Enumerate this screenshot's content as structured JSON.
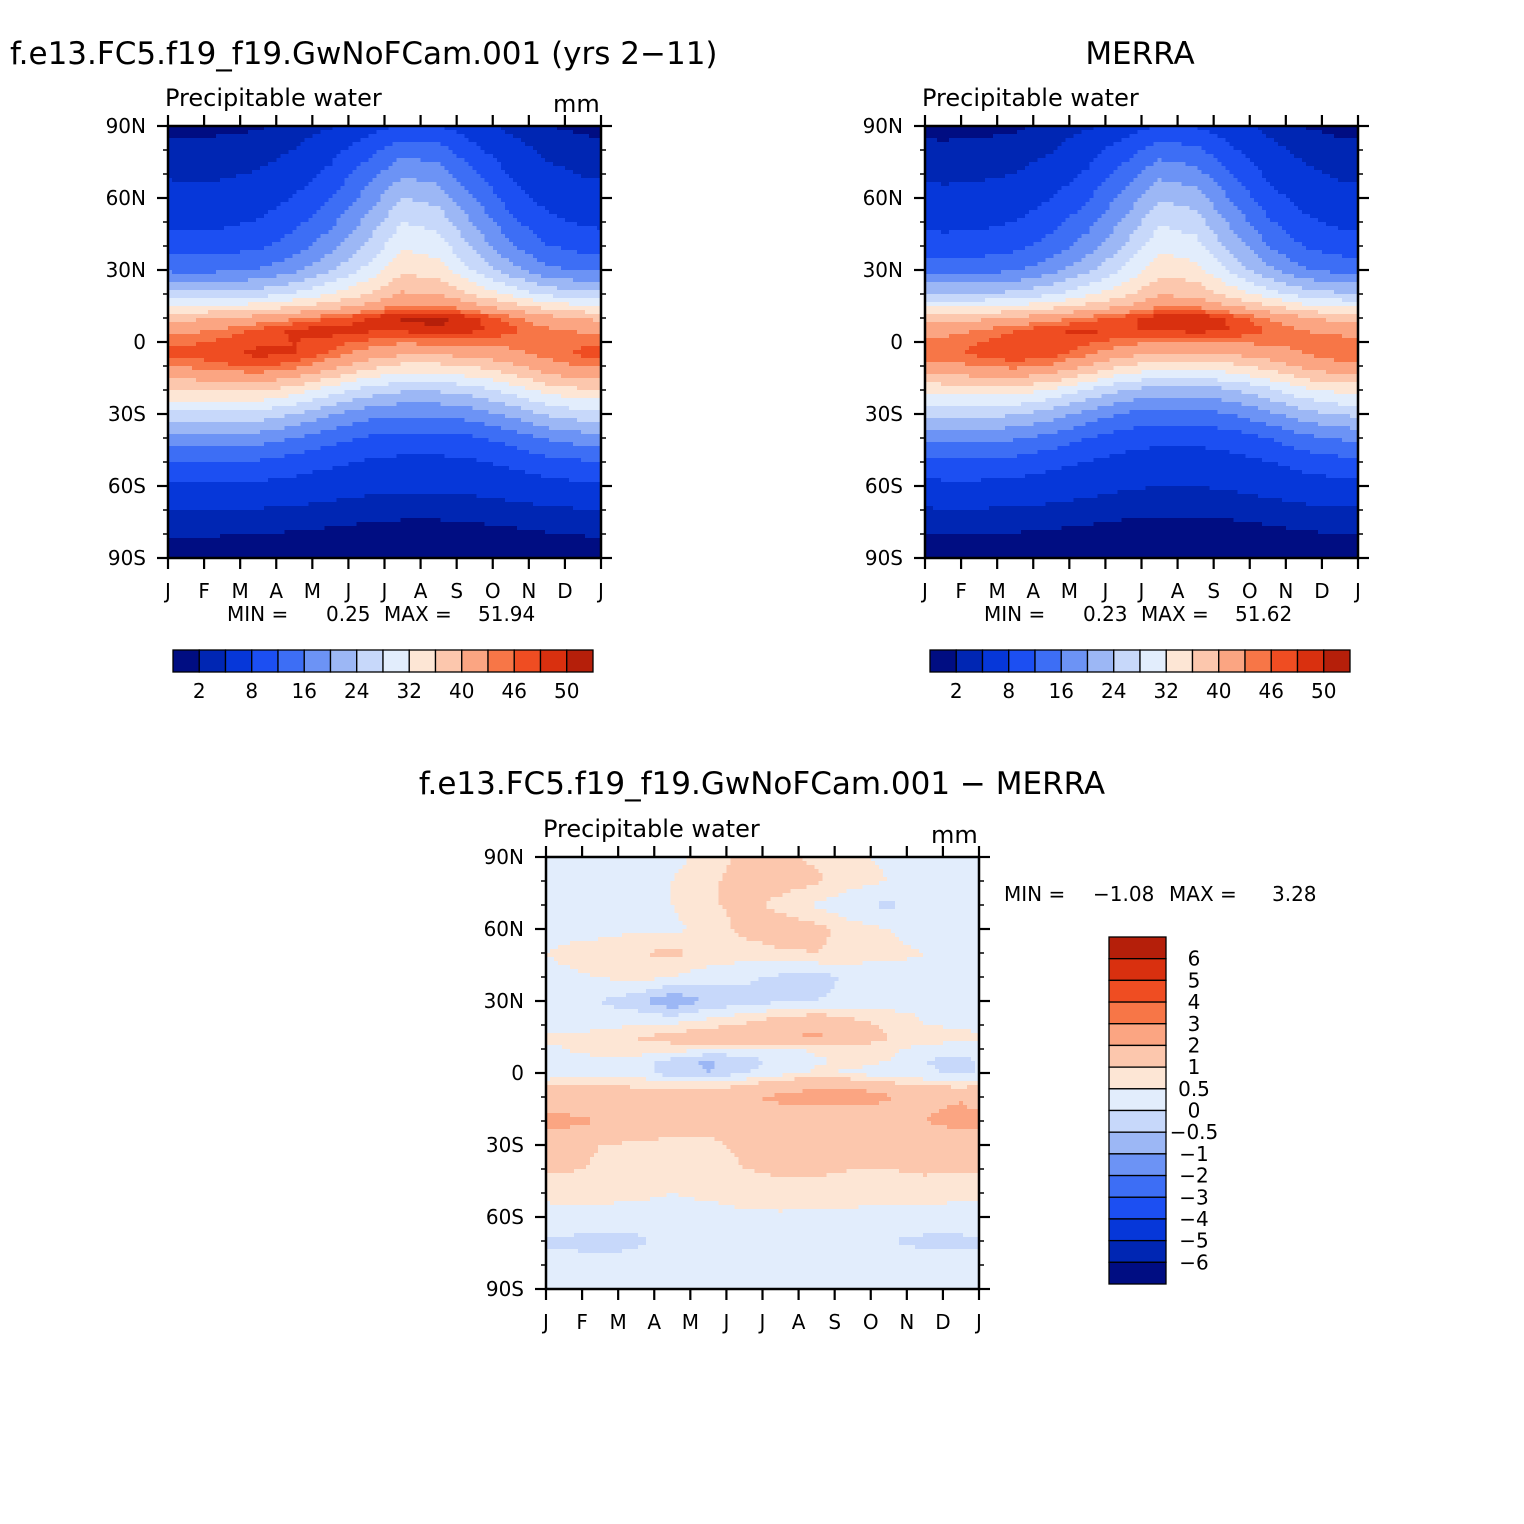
{
  "months": [
    "J",
    "F",
    "M",
    "A",
    "M",
    "J",
    "J",
    "A",
    "S",
    "O",
    "N",
    "D",
    "J"
  ],
  "lat_ticks": [
    "90N",
    "60N",
    "30N",
    "0",
    "30S",
    "60S",
    "90S"
  ],
  "abs_palette": [
    "#000d82",
    "#0026b3",
    "#0637d9",
    "#1c4ff2",
    "#3d6ef5",
    "#6c93f5",
    "#9cb7f5",
    "#c7d8fa",
    "#e2edfc",
    "#fde6d5",
    "#fcc7ad",
    "#fba582",
    "#f77647",
    "#ef4d22",
    "#d9300f",
    "#b51f0a",
    "#850b06"
  ],
  "diff_palette": [
    "#000d82",
    "#0026b3",
    "#0637d9",
    "#1c4ff2",
    "#3d6ef5",
    "#6c93f5",
    "#9cb7f5",
    "#c7d8fa",
    "#e2edfc",
    "#fde6d5",
    "#fcc7ad",
    "#fba582",
    "#f77647",
    "#ef4d22",
    "#d9300f",
    "#b51f0a",
    "#850b06"
  ],
  "chart_data": [
    {
      "type": "heatmap",
      "title": "f.e13.FC5.f19_f19.GwNoFCam.001 (yrs 2−11)",
      "subtitle": "Precipitable water",
      "units": "mm",
      "xlabel": "",
      "ylabel": "",
      "x_ticks": [
        "J",
        "F",
        "M",
        "A",
        "M",
        "J",
        "J",
        "A",
        "S",
        "O",
        "N",
        "D",
        "J"
      ],
      "y_ticks": [
        "90N",
        "60N",
        "30N",
        "0",
        "30S",
        "60S",
        "90S"
      ],
      "ylim": [
        -90,
        90
      ],
      "min_label": "MIN =",
      "min_value": "0.25",
      "max_label": "MAX =",
      "max_value": "51.94",
      "colorbar_labels": [
        "2",
        "8",
        "16",
        "24",
        "32",
        "40",
        "46",
        "50"
      ],
      "levels": [
        2,
        4,
        8,
        12,
        16,
        20,
        24,
        28,
        32,
        36,
        40,
        44,
        46,
        48,
        50
      ],
      "latitudes": [
        90,
        80,
        70,
        60,
        50,
        40,
        30,
        20,
        15,
        10,
        5,
        0,
        -5,
        -10,
        -15,
        -20,
        -30,
        -40,
        -50,
        -60,
        -70,
        -80,
        -90
      ],
      "months_index": [
        1,
        2,
        3,
        4,
        5,
        6,
        7,
        8,
        9,
        10,
        11,
        12
      ],
      "values": [
        [
          1.5,
          1.6,
          1.8,
          2.5,
          3.6,
          6.0,
          8.5,
          8.0,
          5.5,
          3.2,
          2.0,
          1.6
        ],
        [
          2.5,
          2.6,
          2.8,
          4.0,
          6.5,
          10.5,
          14.5,
          13.5,
          9.0,
          5.2,
          3.3,
          2.6
        ],
        [
          3.5,
          3.6,
          4.2,
          5.8,
          9.0,
          14.0,
          19.5,
          18.0,
          12.5,
          7.5,
          4.8,
          3.8
        ],
        [
          5.0,
          5.2,
          6.0,
          8.2,
          12.0,
          17.5,
          24.0,
          22.5,
          16.0,
          10.0,
          6.6,
          5.3
        ],
        [
          7.0,
          7.2,
          8.2,
          10.8,
          15.0,
          21.0,
          28.0,
          26.5,
          19.5,
          13.0,
          9.0,
          7.4
        ],
        [
          10.0,
          10.2,
          11.2,
          14.0,
          18.5,
          24.5,
          31.5,
          30.0,
          23.0,
          16.5,
          12.2,
          10.4
        ],
        [
          15.0,
          15.2,
          16.2,
          19.0,
          23.5,
          29.0,
          35.0,
          34.0,
          27.5,
          21.5,
          17.0,
          15.4
        ],
        [
          25.0,
          25.2,
          26.0,
          28.5,
          32.0,
          36.0,
          40.5,
          40.0,
          35.5,
          31.0,
          27.0,
          25.5
        ],
        [
          32.0,
          32.5,
          33.5,
          35.5,
          38.0,
          41.0,
          44.5,
          44.5,
          41.0,
          37.5,
          34.0,
          32.5
        ],
        [
          39.0,
          40.0,
          41.5,
          43.5,
          46.0,
          48.0,
          50.5,
          51.0,
          48.5,
          45.0,
          41.5,
          39.5
        ],
        [
          43.0,
          44.5,
          46.5,
          48.5,
          49.0,
          48.5,
          48.5,
          49.5,
          48.5,
          46.5,
          44.5,
          43.5
        ],
        [
          45.5,
          46.5,
          47.5,
          48.0,
          47.0,
          45.5,
          44.5,
          45.0,
          45.0,
          45.0,
          45.5,
          45.5
        ],
        [
          46.5,
          47.5,
          48.5,
          48.0,
          45.5,
          42.5,
          40.5,
          40.5,
          41.5,
          43.0,
          45.0,
          46.5
        ],
        [
          44.5,
          45.5,
          46.5,
          45.0,
          41.5,
          37.5,
          35.0,
          35.0,
          36.5,
          39.0,
          42.5,
          44.5
        ],
        [
          40.5,
          41.5,
          42.0,
          40.0,
          36.0,
          32.0,
          30.0,
          30.0,
          31.5,
          34.5,
          38.5,
          40.5
        ],
        [
          36.0,
          36.5,
          36.5,
          34.0,
          30.0,
          26.5,
          24.5,
          24.5,
          26.0,
          29.5,
          33.5,
          35.5
        ],
        [
          27.0,
          27.0,
          26.5,
          24.0,
          20.5,
          17.5,
          16.5,
          16.5,
          18.0,
          21.0,
          24.5,
          26.5
        ],
        [
          18.5,
          18.5,
          18.0,
          16.0,
          13.5,
          11.5,
          10.5,
          10.5,
          11.5,
          13.5,
          16.5,
          18.0
        ],
        [
          12.0,
          12.0,
          11.5,
          10.2,
          8.8,
          7.6,
          7.0,
          7.0,
          7.6,
          8.8,
          10.5,
          11.5
        ],
        [
          7.5,
          7.5,
          7.2,
          6.5,
          5.6,
          4.9,
          4.5,
          4.5,
          4.9,
          5.6,
          6.6,
          7.2
        ],
        [
          4.0,
          4.0,
          3.8,
          3.4,
          3.0,
          2.7,
          2.5,
          2.5,
          2.7,
          3.0,
          3.5,
          3.8
        ],
        [
          2.2,
          2.1,
          2.0,
          1.8,
          1.6,
          1.4,
          1.3,
          1.3,
          1.4,
          1.6,
          1.9,
          2.1
        ],
        [
          0.9,
          0.9,
          0.8,
          0.7,
          0.6,
          0.5,
          0.5,
          0.5,
          0.6,
          0.7,
          0.8,
          0.9
        ]
      ]
    },
    {
      "type": "heatmap",
      "title": "MERRA",
      "subtitle": "Precipitable water",
      "units": "",
      "xlabel": "",
      "ylabel": "",
      "x_ticks": [
        "J",
        "F",
        "M",
        "A",
        "M",
        "J",
        "J",
        "A",
        "S",
        "O",
        "N",
        "D",
        "J"
      ],
      "y_ticks": [
        "90N",
        "60N",
        "30N",
        "0",
        "30S",
        "60S",
        "90S"
      ],
      "ylim": [
        -90,
        90
      ],
      "min_label": "MIN =",
      "min_value": "0.23",
      "max_label": "MAX =",
      "max_value": "51.62",
      "colorbar_labels": [
        "2",
        "8",
        "16",
        "24",
        "32",
        "40",
        "46",
        "50"
      ],
      "levels": [
        2,
        4,
        8,
        12,
        16,
        20,
        24,
        28,
        32,
        36,
        40,
        44,
        46,
        48,
        50
      ],
      "latitudes": [
        90,
        80,
        70,
        60,
        50,
        40,
        30,
        20,
        15,
        10,
        5,
        0,
        -5,
        -10,
        -15,
        -20,
        -30,
        -40,
        -50,
        -60,
        -70,
        -80,
        -90
      ],
      "months_index": [
        1,
        2,
        3,
        4,
        5,
        6,
        7,
        8,
        9,
        10,
        11,
        12
      ],
      "values": [
        [
          1.4,
          1.5,
          1.7,
          2.4,
          3.5,
          5.8,
          8.2,
          7.8,
          5.3,
          3.1,
          1.9,
          1.5
        ],
        [
          2.4,
          2.5,
          2.7,
          3.8,
          6.2,
          10.0,
          14.0,
          13.0,
          8.6,
          5.0,
          3.2,
          2.5
        ],
        [
          3.4,
          3.5,
          4.0,
          5.5,
          8.6,
          13.5,
          19.0,
          17.5,
          12.0,
          7.2,
          4.6,
          3.6
        ],
        [
          4.8,
          5.0,
          5.8,
          7.9,
          11.6,
          17.0,
          23.5,
          22.0,
          15.5,
          9.6,
          6.4,
          5.1
        ],
        [
          6.8,
          7.0,
          8.0,
          10.5,
          14.5,
          20.5,
          27.5,
          26.0,
          19.0,
          12.6,
          8.8,
          7.2
        ],
        [
          9.6,
          9.8,
          10.8,
          13.6,
          18.0,
          24.0,
          31.0,
          29.5,
          22.5,
          16.0,
          11.8,
          10.0
        ],
        [
          14.4,
          14.6,
          15.6,
          18.4,
          23.0,
          28.5,
          34.5,
          33.5,
          27.0,
          21.0,
          16.4,
          14.8
        ],
        [
          24.0,
          24.2,
          25.0,
          27.5,
          31.0,
          35.0,
          39.5,
          39.0,
          34.5,
          30.0,
          26.0,
          24.5
        ],
        [
          31.0,
          31.5,
          32.5,
          34.5,
          37.0,
          40.0,
          43.5,
          43.5,
          40.0,
          36.5,
          33.0,
          31.5
        ],
        [
          38.0,
          39.0,
          40.5,
          42.5,
          45.0,
          47.0,
          49.5,
          50.0,
          47.5,
          44.0,
          40.5,
          38.5
        ],
        [
          42.5,
          44.0,
          46.0,
          48.0,
          48.5,
          48.0,
          48.0,
          49.0,
          48.0,
          46.0,
          44.0,
          43.0
        ],
        [
          45.0,
          46.0,
          47.0,
          47.5,
          46.5,
          45.0,
          44.0,
          44.5,
          44.5,
          44.5,
          45.0,
          45.0
        ],
        [
          45.5,
          46.5,
          47.5,
          47.0,
          44.5,
          41.5,
          39.5,
          39.5,
          40.5,
          42.0,
          44.0,
          45.5
        ],
        [
          43.0,
          44.0,
          45.0,
          43.5,
          40.0,
          36.0,
          33.5,
          33.5,
          35.0,
          37.5,
          41.0,
          43.0
        ],
        [
          38.5,
          39.5,
          40.0,
          38.0,
          34.0,
          30.0,
          28.0,
          28.0,
          29.5,
          32.5,
          36.5,
          38.5
        ],
        [
          33.5,
          34.0,
          34.0,
          31.5,
          27.5,
          24.0,
          22.0,
          22.0,
          23.5,
          27.0,
          31.0,
          33.0
        ],
        [
          25.0,
          25.0,
          24.5,
          22.0,
          18.5,
          15.5,
          14.5,
          14.5,
          16.0,
          19.0,
          22.5,
          24.5
        ],
        [
          17.0,
          17.0,
          16.5,
          14.5,
          12.0,
          10.0,
          9.0,
          9.0,
          10.0,
          12.0,
          15.0,
          16.5
        ],
        [
          11.0,
          11.0,
          10.5,
          9.2,
          7.8,
          6.6,
          6.0,
          6.0,
          6.6,
          7.8,
          9.5,
          10.5
        ],
        [
          7.0,
          7.0,
          6.7,
          6.0,
          5.1,
          4.4,
          4.0,
          4.0,
          4.4,
          5.1,
          6.1,
          6.7
        ],
        [
          3.8,
          3.8,
          3.6,
          3.2,
          2.8,
          2.5,
          2.3,
          2.3,
          2.5,
          2.8,
          3.3,
          3.6
        ],
        [
          2.1,
          2.0,
          1.9,
          1.7,
          1.5,
          1.3,
          1.2,
          1.2,
          1.3,
          1.5,
          1.8,
          2.0
        ],
        [
          0.8,
          0.8,
          0.7,
          0.6,
          0.5,
          0.4,
          0.4,
          0.4,
          0.5,
          0.6,
          0.7,
          0.8
        ]
      ]
    },
    {
      "type": "heatmap",
      "title": "f.e13.FC5.f19_f19.GwNoFCam.001 − MERRA",
      "subtitle": "Precipitable water",
      "units": "mm",
      "xlabel": "",
      "ylabel": "",
      "x_ticks": [
        "J",
        "F",
        "M",
        "A",
        "M",
        "J",
        "J",
        "A",
        "S",
        "O",
        "N",
        "D",
        "J"
      ],
      "y_ticks": [
        "90N",
        "60N",
        "30N",
        "0",
        "30S",
        "60S",
        "90S"
      ],
      "ylim": [
        -90,
        90
      ],
      "min_label": "MIN =",
      "min_value": "−1.08",
      "max_label": "MAX =",
      "max_value": "3.28",
      "colorbar_labels": [
        "6",
        "5",
        "4",
        "3",
        "2",
        "1",
        "0.5",
        "0",
        "−0.5",
        "−1",
        "−2",
        "−3",
        "−4",
        "−5",
        "−6"
      ],
      "levels": [
        -6,
        -5,
        -4,
        -3,
        -2,
        -1,
        -0.5,
        0,
        0.5,
        1,
        2,
        3,
        4,
        5,
        6
      ],
      "latitudes": [
        90,
        80,
        70,
        60,
        50,
        40,
        30,
        20,
        15,
        10,
        5,
        0,
        -5,
        -10,
        -15,
        -20,
        -30,
        -40,
        -50,
        -60,
        -70,
        -80,
        -90
      ],
      "months_index": [
        1,
        2,
        3,
        4,
        5,
        6,
        7,
        8,
        9,
        10,
        11,
        12
      ],
      "values": [
        [
          0.2,
          0.3,
          0.3,
          0.4,
          0.6,
          1.2,
          1.1,
          0.9,
          0.6,
          0.4,
          0.2,
          0.1
        ],
        [
          0.3,
          0.3,
          0.4,
          0.5,
          0.8,
          1.4,
          1.3,
          1.1,
          0.7,
          0.5,
          0.3,
          0.2
        ],
        [
          0.2,
          0.3,
          0.4,
          0.5,
          0.9,
          1.2,
          0.8,
          0.4,
          0.1,
          -0.1,
          0.2,
          0.2
        ],
        [
          0.3,
          0.3,
          0.4,
          0.4,
          0.6,
          1.2,
          1.4,
          1.2,
          0.7,
          0.5,
          0.3,
          0.3
        ],
        [
          0.6,
          0.8,
          1.0,
          1.1,
          0.9,
          0.7,
          0.9,
          1.0,
          0.8,
          0.6,
          0.5,
          0.4
        ],
        [
          0.4,
          0.5,
          0.7,
          0.5,
          0.2,
          0.1,
          -0.1,
          -0.2,
          0.1,
          0.3,
          0.4,
          0.4
        ],
        [
          0.1,
          0.0,
          -0.3,
          -1.0,
          -0.4,
          -0.2,
          -0.1,
          0.0,
          0.2,
          0.3,
          0.4,
          0.3
        ],
        [
          0.2,
          0.3,
          0.5,
          0.6,
          0.8,
          1.1,
          1.6,
          1.8,
          1.3,
          0.8,
          0.5,
          0.4
        ],
        [
          0.6,
          0.8,
          1.0,
          1.2,
          1.5,
          1.8,
          2.0,
          2.1,
          1.7,
          1.0,
          0.8,
          0.7
        ],
        [
          0.5,
          0.7,
          0.9,
          0.8,
          0.5,
          0.3,
          0.4,
          0.6,
          0.7,
          0.6,
          0.3,
          0.2
        ],
        [
          0.3,
          0.4,
          0.2,
          -0.2,
          -0.6,
          -0.2,
          0.1,
          0.4,
          0.7,
          0.5,
          0.0,
          -0.2
        ],
        [
          0.2,
          0.3,
          0.3,
          -0.3,
          -0.5,
          0.0,
          0.3,
          0.6,
          0.4,
          0.2,
          0.1,
          -0.1
        ],
        [
          1.0,
          1.1,
          0.9,
          0.8,
          0.7,
          1.0,
          1.4,
          1.8,
          1.6,
          1.2,
          0.9,
          0.8
        ],
        [
          1.5,
          1.4,
          1.3,
          1.2,
          1.3,
          1.9,
          2.2,
          2.5,
          2.9,
          2.1,
          1.8,
          1.9
        ],
        [
          1.8,
          1.6,
          1.4,
          1.3,
          1.5,
          1.7,
          1.8,
          1.9,
          1.8,
          1.6,
          1.9,
          2.1
        ],
        [
          2.3,
          2.0,
          1.6,
          1.4,
          1.2,
          1.2,
          1.3,
          1.4,
          1.5,
          1.7,
          2.0,
          2.3
        ],
        [
          1.3,
          1.0,
          0.9,
          0.8,
          0.9,
          1.1,
          1.2,
          1.3,
          1.4,
          1.3,
          1.4,
          1.4
        ],
        [
          1.1,
          0.9,
          0.8,
          0.7,
          0.8,
          1.0,
          1.1,
          1.1,
          1.0,
          1.0,
          1.1,
          1.1
        ],
        [
          0.6,
          0.6,
          0.6,
          0.5,
          0.6,
          0.7,
          0.8,
          0.8,
          0.8,
          0.7,
          0.7,
          0.6
        ],
        [
          0.4,
          0.4,
          0.3,
          0.3,
          0.3,
          0.4,
          0.4,
          0.3,
          0.3,
          0.3,
          0.3,
          0.3
        ],
        [
          -0.1,
          -0.2,
          -0.1,
          0.2,
          0.3,
          0.1,
          0.1,
          0.3,
          0.2,
          0.0,
          -0.1,
          -0.1
        ],
        [
          0.2,
          0.2,
          0.2,
          0.3,
          0.3,
          0.3,
          0.3,
          0.3,
          0.3,
          0.3,
          0.2,
          0.2
        ],
        [
          0.1,
          0.1,
          0.1,
          0.2,
          0.2,
          0.2,
          0.2,
          0.2,
          0.2,
          0.2,
          0.1,
          0.1
        ]
      ]
    }
  ]
}
